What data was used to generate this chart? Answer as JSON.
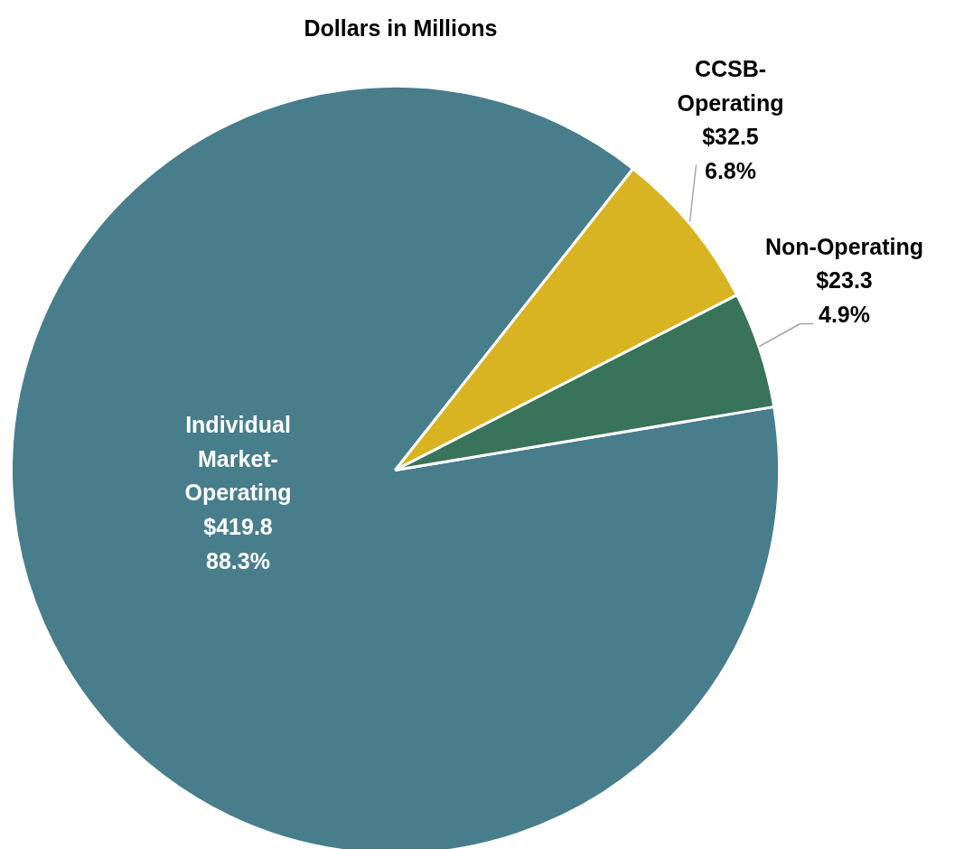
{
  "chart_data": {
    "type": "pie",
    "title": "Dollars in Millions",
    "categories": [
      "Individual Market-Operating",
      "CCSB-Operating",
      "Non-Operating"
    ],
    "values": [
      419.8,
      32.5,
      23.3
    ],
    "colors": [
      "#487d8c",
      "#d9b422",
      "#38735a"
    ],
    "value_labels": [
      "$419.8\n88.3%",
      "$32.5\n6.8%",
      "$23.3\n4.9%"
    ]
  }
}
